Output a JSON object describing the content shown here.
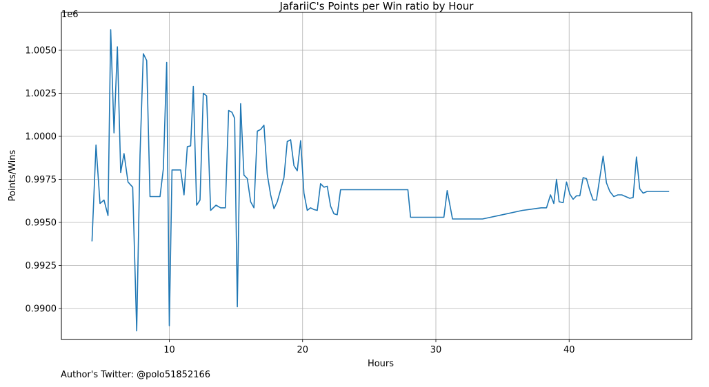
{
  "caption": "Author's Twitter: @polo51852166",
  "chart_data": {
    "type": "line",
    "title": "JafariiC's Points per Win ratio by Hour",
    "xlabel": "Hours",
    "ylabel": "Points/Wins",
    "offset_text": "1e6",
    "xlim": [
      1.9,
      49.2
    ],
    "ylim": [
      988200,
      1007200
    ],
    "x_ticks": [
      10,
      20,
      30,
      40
    ],
    "y_ticks": [
      990000,
      992500,
      995000,
      997500,
      1000000,
      1002500,
      1005000
    ],
    "y_tick_labels": [
      "0.9900",
      "0.9925",
      "0.9950",
      "0.9975",
      "1.0000",
      "1.0025",
      "1.0050"
    ],
    "grid": true,
    "line_color": "#1f77b4",
    "series": [
      {
        "x": [
          4.2,
          4.5,
          4.8,
          5.1,
          5.4,
          5.6,
          5.85,
          6.1,
          6.35,
          6.6,
          6.9,
          7.25,
          7.55,
          7.8,
          8.05,
          8.3,
          8.55,
          8.8,
          9.3,
          9.55,
          9.8,
          10.0,
          10.2,
          10.5,
          10.85,
          11.1,
          11.35,
          11.6,
          11.8,
          12.05,
          12.3,
          12.55,
          12.8,
          13.1,
          13.5,
          13.85,
          14.2,
          14.45,
          14.7,
          14.9,
          15.1,
          15.35,
          15.6,
          15.85,
          16.1,
          16.35,
          16.6,
          16.85,
          17.1,
          17.35,
          17.6,
          17.85,
          18.1,
          18.35,
          18.6,
          18.85,
          19.1,
          19.35,
          19.6,
          19.85,
          20.1,
          20.35,
          20.6,
          20.85,
          21.1,
          21.35,
          21.6,
          21.85,
          22.1,
          22.35,
          22.6,
          22.85,
          23.5,
          25.0,
          27.0,
          27.9,
          28.1,
          29.0,
          30.0,
          30.6,
          30.85,
          31.25,
          31.5,
          32.0,
          33.5,
          35.0,
          36.5,
          37.9,
          38.3,
          38.6,
          38.85,
          39.05,
          39.25,
          39.55,
          39.8,
          40.05,
          40.3,
          40.55,
          40.8,
          41.05,
          41.3,
          41.55,
          41.8,
          42.05,
          42.3,
          42.55,
          42.8,
          43.05,
          43.35,
          43.65,
          43.95,
          44.25,
          44.55,
          44.8,
          45.05,
          45.3,
          45.55,
          45.85,
          46.2,
          46.6,
          47.0,
          47.5
        ],
        "y": [
          993900,
          999500,
          996100,
          996300,
          995400,
          1006200,
          1000200,
          1005200,
          997900,
          999000,
          997350,
          997050,
          988700,
          998900,
          1004800,
          1004400,
          996500,
          996500,
          996500,
          998100,
          1004300,
          989000,
          998050,
          998050,
          998050,
          996600,
          999400,
          999450,
          1002900,
          996000,
          996300,
          1002500,
          1002350,
          995700,
          996000,
          995850,
          995850,
          1001500,
          1001400,
          1001050,
          990100,
          1001900,
          997750,
          997550,
          996200,
          995850,
          1000300,
          1000400,
          1000650,
          997800,
          996600,
          995800,
          996200,
          996900,
          997600,
          999700,
          999800,
          998300,
          998000,
          999750,
          996700,
          995700,
          995850,
          995750,
          995700,
          997250,
          997050,
          997100,
          995950,
          995500,
          995450,
          996900,
          996900,
          996900,
          996900,
          996900,
          995300,
          995300,
          995300,
          995300,
          996850,
          995200,
          995200,
          995200,
          995200,
          995450,
          995700,
          995850,
          995850,
          996600,
          996100,
          997500,
          996200,
          996150,
          997350,
          996650,
          996350,
          996550,
          996550,
          997600,
          997550,
          996850,
          996300,
          996300,
          997600,
          998850,
          997300,
          996800,
          996500,
          996600,
          996600,
          996500,
          996400,
          996450,
          998800,
          996950,
          996700,
          996800,
          996800,
          996800,
          996800,
          996800
        ]
      }
    ]
  }
}
